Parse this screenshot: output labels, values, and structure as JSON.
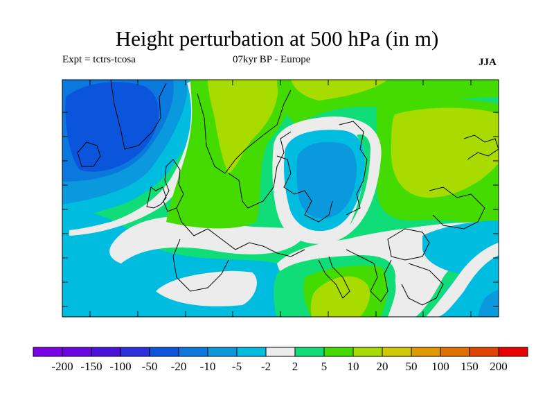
{
  "title": "Height perturbation at 500 hPa (in m)",
  "expt_label": "Expt = tctrs-tcosa",
  "subtitle": "07kyr BP - Europe",
  "season": "JJA",
  "colorbar": {
    "colors": [
      "#7a00e6",
      "#6a04e0",
      "#4a10dc",
      "#2a30dc",
      "#0a55dc",
      "#0a78dc",
      "#0a99dc",
      "#00bde0",
      "#ececec",
      "#10dc78",
      "#44dc00",
      "#a8dc00",
      "#d0c800",
      "#e09a00",
      "#e07000",
      "#e04400",
      "#e80000"
    ],
    "labels": [
      "-200",
      "-150",
      "-100",
      "-50",
      "-20",
      "-10",
      "-5",
      "-2",
      "2",
      "5",
      "10",
      "20",
      "50",
      "100",
      "150",
      "200"
    ]
  }
}
